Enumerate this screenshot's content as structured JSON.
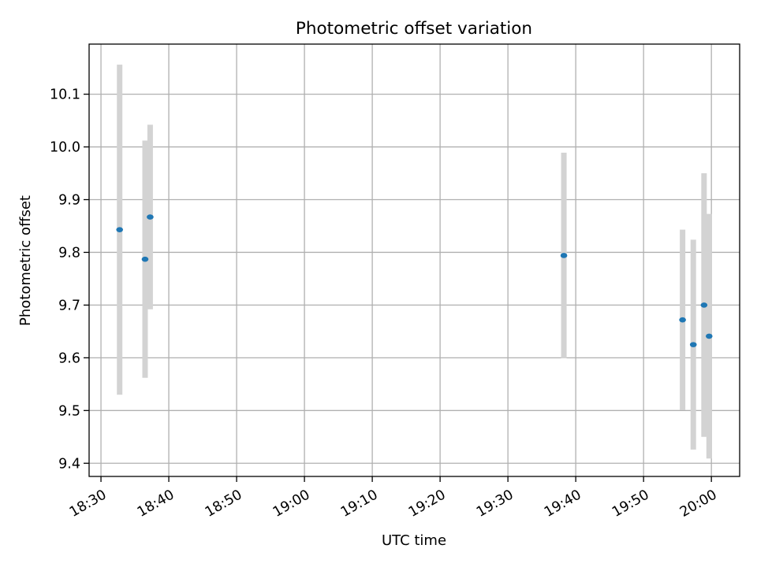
{
  "chart_data": {
    "type": "scatter",
    "title": "Photometric offset variation",
    "xlabel": "UTC time",
    "ylabel": "Photometric offset",
    "x_ticks": [
      "18:30",
      "18:40",
      "18:50",
      "19:00",
      "19:10",
      "19:20",
      "19:30",
      "19:40",
      "19:50",
      "20:00"
    ],
    "y_ticks": [
      "9.4",
      "9.5",
      "9.6",
      "9.7",
      "9.8",
      "9.9",
      "10.0",
      "10.1"
    ],
    "xlim": [
      "18:28:15",
      "20:04:10"
    ],
    "ylim": [
      9.375,
      10.195
    ],
    "grid": true,
    "legend": "none",
    "marker_color": "#1f77b4",
    "errorbar_color": "#d3d3d3",
    "points": [
      {
        "x": "18:32:45",
        "y": 9.843,
        "yerr": 0.313
      },
      {
        "x": "18:36:30",
        "y": 9.787,
        "yerr": 0.225
      },
      {
        "x": "18:37:15",
        "y": 9.867,
        "yerr": 0.175
      },
      {
        "x": "19:38:15",
        "y": 9.794,
        "yerr": 0.195
      },
      {
        "x": "19:55:45",
        "y": 9.672,
        "yerr": 0.171
      },
      {
        "x": "19:57:20",
        "y": 9.625,
        "yerr": 0.199
      },
      {
        "x": "19:58:55",
        "y": 9.7,
        "yerr": 0.25
      },
      {
        "x": "19:59:40",
        "y": 9.641,
        "yerr": 0.232
      }
    ]
  }
}
